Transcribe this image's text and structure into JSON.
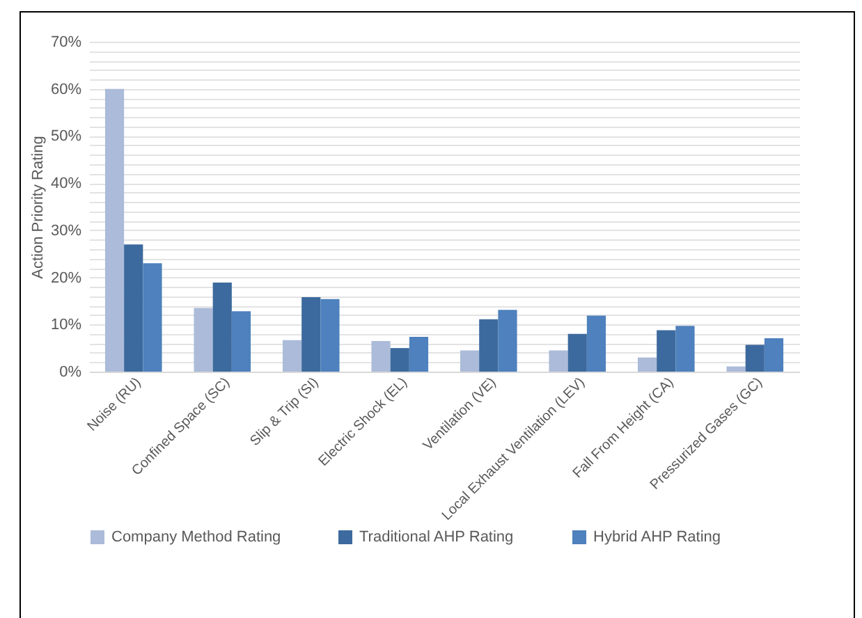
{
  "chart_data": {
    "type": "bar",
    "ylabel": "Action Priority Rating",
    "categories": [
      "Noise (RU)",
      "Confined Space (SC)",
      "Slip & Trip (SI)",
      "Electric Shock (EL)",
      "Ventilation (VE)",
      "Local Exhaust Ventilation (LEV)",
      "Fall From Height (CA)",
      "Pressurized Gases (GC)"
    ],
    "series": [
      {
        "name": "Company Method Rating",
        "color": "#abbbd9",
        "values": [
          60,
          13.5,
          6.7,
          6.5,
          4.5,
          4.5,
          3.0,
          1.1
        ]
      },
      {
        "name": "Traditional AHP Rating",
        "color": "#3d6a9e",
        "values": [
          27,
          18.9,
          15.8,
          5.0,
          11.1,
          8.0,
          8.8,
          5.7
        ]
      },
      {
        "name": "Hybrid AHP Rating",
        "color": "#4e81bd",
        "values": [
          23,
          12.8,
          15.4,
          7.4,
          13.1,
          11.9,
          9.7,
          7.1
        ]
      }
    ],
    "ylim": [
      0,
      70
    ],
    "yticks": [
      {
        "value": 0,
        "label": "0%"
      },
      {
        "value": 2,
        "label": null
      },
      {
        "value": 4,
        "label": null
      },
      {
        "value": 6,
        "label": null
      },
      {
        "value": 8,
        "label": null
      },
      {
        "value": 10,
        "label": "10%"
      },
      {
        "value": 12,
        "label": null
      },
      {
        "value": 14,
        "label": null
      },
      {
        "value": 16,
        "label": null
      },
      {
        "value": 18,
        "label": null
      },
      {
        "value": 20,
        "label": "20%"
      },
      {
        "value": 22,
        "label": null
      },
      {
        "value": 24,
        "label": null
      },
      {
        "value": 26,
        "label": null
      },
      {
        "value": 28,
        "label": null
      },
      {
        "value": 30,
        "label": "30%"
      },
      {
        "value": 32,
        "label": null
      },
      {
        "value": 34,
        "label": null
      },
      {
        "value": 36,
        "label": null
      },
      {
        "value": 38,
        "label": null
      },
      {
        "value": 40,
        "label": "40%"
      },
      {
        "value": 42,
        "label": null
      },
      {
        "value": 44,
        "label": null
      },
      {
        "value": 46,
        "label": null
      },
      {
        "value": 48,
        "label": null
      },
      {
        "value": 50,
        "label": "50%"
      },
      {
        "value": 52,
        "label": null
      },
      {
        "value": 54,
        "label": null
      },
      {
        "value": 56,
        "label": null
      },
      {
        "value": 58,
        "label": null
      },
      {
        "value": 60,
        "label": "60%"
      },
      {
        "value": 62,
        "label": null
      },
      {
        "value": 64,
        "label": null
      },
      {
        "value": 66,
        "label": null
      },
      {
        "value": 68,
        "label": null
      },
      {
        "value": 70,
        "label": "70%"
      }
    ],
    "grid": "y",
    "legend": "bottom"
  }
}
